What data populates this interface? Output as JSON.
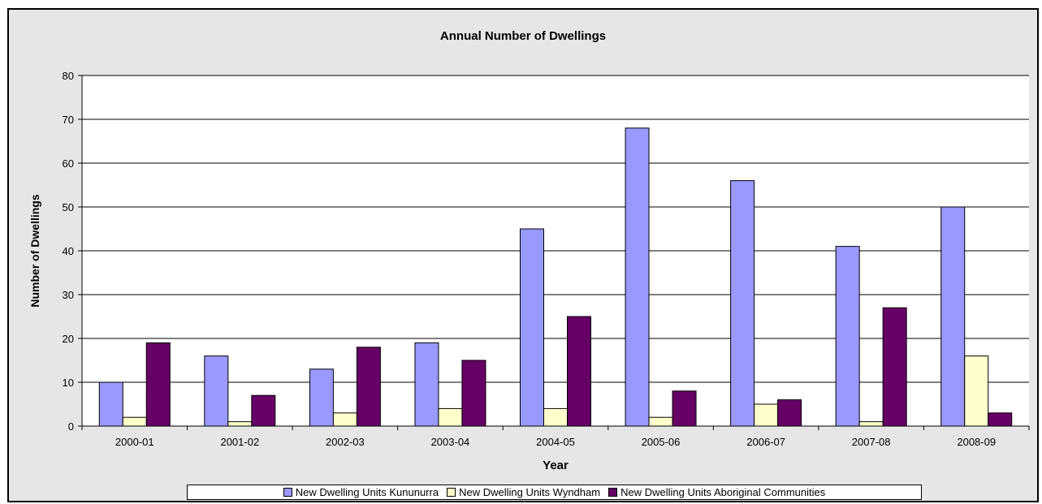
{
  "chart_data": {
    "type": "bar",
    "title": "Annual Number of Dwellings",
    "xlabel": "Year",
    "ylabel": "Number of Dwellings",
    "ylim": [
      0,
      80
    ],
    "yticks": [
      0,
      10,
      20,
      30,
      40,
      50,
      60,
      70,
      80
    ],
    "grid": true,
    "legend_position": "bottom",
    "categories": [
      "2000-01",
      "2001-02",
      "2002-03",
      "2003-04",
      "2004-05",
      "2005-06",
      "2006-07",
      "2007-08",
      "2008-09"
    ],
    "series": [
      {
        "name": "New Dwelling Units Kununurra",
        "color": "#9999ff",
        "values": [
          10,
          16,
          13,
          19,
          45,
          68,
          56,
          41,
          50
        ]
      },
      {
        "name": "New Dwelling Units Wyndham",
        "color": "#ffffcc",
        "values": [
          2,
          1,
          3,
          4,
          4,
          2,
          5,
          1,
          16
        ]
      },
      {
        "name": "New Dwelling Units Aboriginal Communities",
        "color": "#660066",
        "values": [
          19,
          7,
          18,
          15,
          25,
          8,
          6,
          27,
          3
        ]
      }
    ]
  }
}
